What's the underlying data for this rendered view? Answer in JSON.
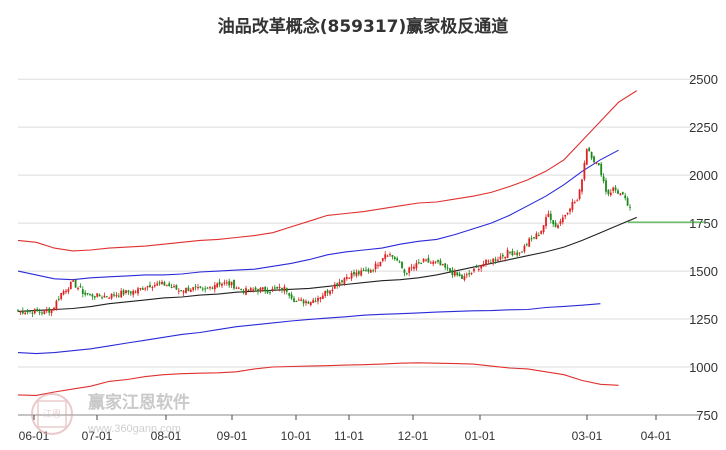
{
  "chart_data": {
    "type": "candlestick",
    "title": "油品改革概念(859317)赢家极反通道",
    "y_ticks": [
      2500,
      2250,
      2000,
      1750,
      1500,
      1250,
      1000,
      750
    ],
    "ylim": [
      750,
      2600
    ],
    "x_ticks": [
      "06-01",
      "07-01",
      "08-01",
      "09-01",
      "10-01",
      "11-01",
      "12-01",
      "01-01",
      "03-01",
      "04-01"
    ],
    "grid": true,
    "last_close": 1755,
    "colors": {
      "up": "#e02020",
      "down": "#1a8a1a",
      "outer_band": "#e03030",
      "inner_band": "#2a2ad8",
      "middle_line": "#222222",
      "last_price_line": "#22aa22",
      "grid": "#dddddd"
    },
    "bands": {
      "outer_upper": [
        1660,
        1650,
        1620,
        1605,
        1610,
        1620,
        1625,
        1630,
        1640,
        1650,
        1660,
        1665,
        1675,
        1685,
        1700,
        1730,
        1760,
        1790,
        1800,
        1810,
        1825,
        1840,
        1855,
        1860,
        1875,
        1890,
        1910,
        1940,
        1975,
        2020,
        2080,
        2180,
        2280,
        2380,
        2440
      ],
      "inner_upper": [
        1500,
        1480,
        1460,
        1455,
        1465,
        1470,
        1475,
        1480,
        1480,
        1485,
        1495,
        1500,
        1505,
        1510,
        1525,
        1540,
        1560,
        1585,
        1600,
        1610,
        1620,
        1640,
        1655,
        1665,
        1690,
        1720,
        1750,
        1790,
        1840,
        1890,
        1950,
        2020,
        2080,
        2130
      ],
      "middle": [
        1290,
        1295,
        1300,
        1305,
        1315,
        1330,
        1340,
        1350,
        1360,
        1365,
        1375,
        1380,
        1390,
        1395,
        1400,
        1405,
        1410,
        1420,
        1430,
        1440,
        1450,
        1455,
        1465,
        1480,
        1500,
        1520,
        1540,
        1560,
        1580,
        1600,
        1625,
        1660,
        1700,
        1740,
        1780
      ],
      "inner_lower": [
        1075,
        1070,
        1075,
        1085,
        1095,
        1110,
        1125,
        1140,
        1155,
        1170,
        1180,
        1195,
        1210,
        1220,
        1230,
        1240,
        1248,
        1255,
        1262,
        1270,
        1275,
        1278,
        1282,
        1286,
        1290,
        1293,
        1294,
        1298,
        1300,
        1310,
        1316,
        1322,
        1330
      ],
      "outer_lower": [
        855,
        852,
        870,
        885,
        900,
        925,
        935,
        950,
        960,
        965,
        968,
        970,
        975,
        990,
        1000,
        1003,
        1005,
        1007,
        1010,
        1012,
        1015,
        1020,
        1022,
        1020,
        1018,
        1015,
        1005,
        995,
        990,
        975,
        960,
        930,
        910,
        905
      ]
    },
    "price_segments": [
      [
        "06-01",
        1290
      ],
      [
        "06-05",
        1285
      ],
      [
        "06-10",
        1300
      ],
      [
        "06-14",
        1380
      ],
      [
        "06-20",
        1440
      ],
      [
        "06-26",
        1380
      ],
      [
        "07-01",
        1370
      ],
      [
        "07-06",
        1370
      ],
      [
        "07-12",
        1385
      ],
      [
        "07-18",
        1395
      ],
      [
        "07-25",
        1430
      ],
      [
        "08-01",
        1430
      ],
      [
        "08-07",
        1400
      ],
      [
        "08-13",
        1410
      ],
      [
        "08-19",
        1395
      ],
      [
        "08-25",
        1440
      ],
      [
        "09-01",
        1430
      ],
      [
        "09-07",
        1395
      ],
      [
        "09-13",
        1405
      ],
      [
        "09-20",
        1400
      ],
      [
        "09-27",
        1410
      ],
      [
        "10-01",
        1340
      ],
      [
        "10-10",
        1345
      ],
      [
        "10-17",
        1380
      ],
      [
        "10-24",
        1430
      ],
      [
        "11-01",
        1480
      ],
      [
        "11-07",
        1490
      ],
      [
        "11-13",
        1515
      ],
      [
        "11-19",
        1600
      ],
      [
        "11-24",
        1560
      ],
      [
        "11-28",
        1490
      ],
      [
        "12-01",
        1520
      ],
      [
        "12-06",
        1550
      ],
      [
        "12-12",
        1540
      ],
      [
        "12-18",
        1500
      ],
      [
        "12-24",
        1460
      ],
      [
        "12-28",
        1490
      ],
      [
        "01-01",
        1530
      ],
      [
        "01-06",
        1550
      ],
      [
        "01-12",
        1570
      ],
      [
        "01-18",
        1600
      ],
      [
        "01-24",
        1590
      ],
      [
        "01-30",
        1660
      ],
      [
        "02-05",
        1700
      ],
      [
        "02-10",
        1800
      ],
      [
        "02-14",
        1730
      ],
      [
        "02-19",
        1790
      ],
      [
        "02-23",
        1850
      ],
      [
        "02-27",
        1870
      ],
      [
        "03-01",
        2150
      ],
      [
        "03-04",
        2080
      ],
      [
        "03-07",
        2030
      ],
      [
        "03-10",
        1900
      ],
      [
        "03-13",
        1930
      ],
      [
        "03-17",
        1890
      ],
      [
        "03-20",
        1830
      ],
      [
        "03-22",
        1755
      ]
    ]
  },
  "watermark": {
    "brand": "赢家江恩软件",
    "url": "www.360gann.com",
    "logo_text": "江恩"
  }
}
